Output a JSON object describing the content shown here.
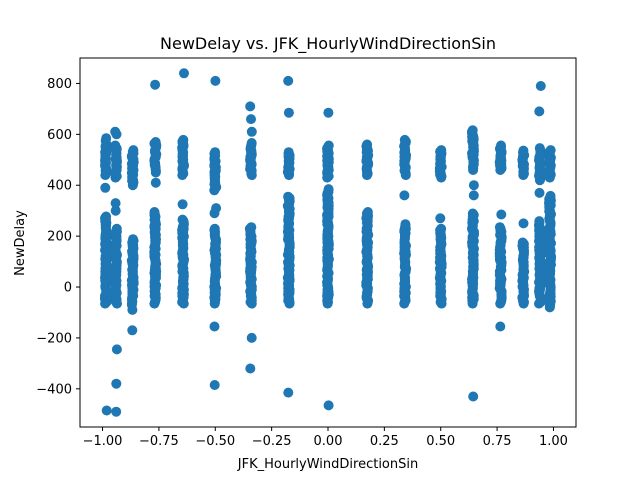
{
  "chart_data": {
    "type": "scatter",
    "title": "NewDelay vs. JFK_HourlyWindDirectionSin",
    "xlabel": "JFK_HourlyWindDirectionSin",
    "ylabel": "NewDelay",
    "xlim": [
      -1.1,
      1.1
    ],
    "ylim": [
      -550,
      900
    ],
    "xticks": [
      -1.0,
      -0.75,
      -0.5,
      -0.25,
      0.0,
      0.25,
      0.5,
      0.75,
      1.0
    ],
    "xtick_labels": [
      "−1.00",
      "−0.75",
      "−0.50",
      "−0.25",
      "0.00",
      "0.25",
      "0.50",
      "0.75",
      "1.00"
    ],
    "yticks": [
      -400,
      -200,
      0,
      200,
      400,
      600,
      800
    ],
    "ytick_labels": [
      "−400",
      "−200",
      "0",
      "200",
      "400",
      "600",
      "800"
    ],
    "grid": false,
    "marker_color": "#1f77b4",
    "columns": [
      {
        "x": -0.985,
        "main_range": [
          -65,
          280
        ],
        "upper_range": [
          440,
          560
        ],
        "outliers": [
          390,
          575,
          585,
          -485
        ]
      },
      {
        "x": -0.94,
        "main_range": [
          -65,
          230
        ],
        "upper_range": [
          430,
          560
        ],
        "outliers": [
          300,
          330,
          600,
          610,
          -245,
          -380,
          -490
        ]
      },
      {
        "x": -0.866,
        "main_range": [
          -70,
          190
        ],
        "upper_range": [
          400,
          540
        ],
        "outliers": [
          -90,
          -170
        ]
      },
      {
        "x": -0.766,
        "main_range": [
          -65,
          300
        ],
        "upper_range": [
          450,
          570
        ],
        "outliers": [
          410,
          795
        ]
      },
      {
        "x": -0.643,
        "main_range": [
          -65,
          270
        ],
        "upper_range": [
          440,
          580
        ],
        "outliers": [
          325,
          840
        ]
      },
      {
        "x": -0.5,
        "main_range": [
          -65,
          230
        ],
        "upper_range": [
          380,
          530
        ],
        "outliers": [
          290,
          310,
          810,
          -155,
          -385
        ]
      },
      {
        "x": -0.342,
        "main_range": [
          -65,
          240
        ],
        "upper_range": [
          440,
          570
        ],
        "outliers": [
          610,
          660,
          710,
          -200,
          -320
        ]
      },
      {
        "x": -0.174,
        "main_range": [
          -65,
          360
        ],
        "upper_range": [
          440,
          535
        ],
        "outliers": [
          685,
          810,
          -415
        ]
      },
      {
        "x": 0.0,
        "main_range": [
          -65,
          390
        ],
        "upper_range": [
          430,
          560
        ],
        "outliers": [
          685,
          -465
        ]
      },
      {
        "x": 0.174,
        "main_range": [
          -65,
          300
        ],
        "upper_range": [
          440,
          560
        ],
        "outliers": []
      },
      {
        "x": 0.342,
        "main_range": [
          -65,
          250
        ],
        "upper_range": [
          440,
          580
        ],
        "outliers": [
          360
        ]
      },
      {
        "x": 0.5,
        "main_range": [
          -65,
          230
        ],
        "upper_range": [
          430,
          540
        ],
        "outliers": [
          270
        ]
      },
      {
        "x": 0.643,
        "main_range": [
          -65,
          290
        ],
        "upper_range": [
          460,
          620
        ],
        "outliers": [
          360,
          400,
          590,
          -430
        ]
      },
      {
        "x": 0.766,
        "main_range": [
          -65,
          240
        ],
        "upper_range": [
          460,
          560
        ],
        "outliers": [
          285,
          -155
        ]
      },
      {
        "x": 0.866,
        "main_range": [
          -65,
          180
        ],
        "upper_range": [
          440,
          540
        ],
        "outliers": [
          250
        ]
      },
      {
        "x": 0.94,
        "main_range": [
          -65,
          260
        ],
        "upper_range": [
          420,
          550
        ],
        "outliers": [
          370,
          690,
          790
        ]
      },
      {
        "x": 0.985,
        "main_range": [
          -80,
          360
        ],
        "upper_range": [
          430,
          540
        ],
        "outliers": []
      }
    ]
  }
}
